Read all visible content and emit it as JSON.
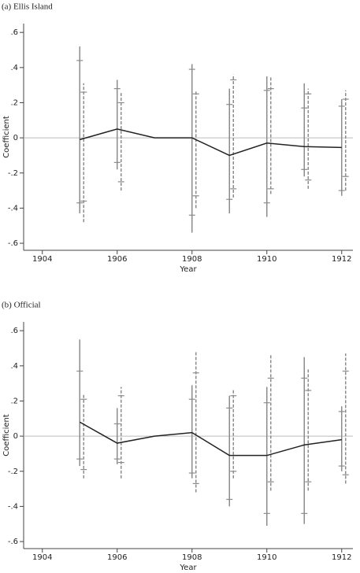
{
  "chart_data": [
    {
      "type": "line",
      "title": "(a) Ellis Island",
      "x_label": "Year",
      "y_label": "Coefficient",
      "x": [
        1905,
        1906,
        1907,
        1908,
        1909,
        1910,
        1911,
        1912
      ],
      "values": [
        -0.01,
        0.05,
        0,
        0.0,
        -0.1,
        -0.03,
        -0.05,
        -0.055
      ],
      "color": "#222222",
      "xlim": [
        1903.5,
        1912.3
      ],
      "xticks": [
        1904,
        1906,
        1908,
        1910,
        1912
      ],
      "ylim": [
        -0.64,
        0.65
      ],
      "yticks": [
        {
          "value": 0.6,
          "label": ".6"
        },
        {
          "value": 0.4,
          "label": ".4"
        },
        {
          "value": 0.2,
          "label": ".2"
        },
        0,
        {
          "value": -0.2,
          "label": "-.2"
        },
        {
          "value": -0.4,
          "label": "-.4"
        },
        {
          "value": -0.6,
          "label": "-.6"
        }
      ],
      "reference_line": 0,
      "intervals": [
        {
          "dashed": false,
          "color": "#8c8c8c",
          "low": [
            -0.43,
            -0.18,
            null,
            -0.54,
            -0.43,
            -0.45,
            -0.22,
            -0.33
          ],
          "high": [
            0.52,
            0.33,
            null,
            0.42,
            0.28,
            0.35,
            0.31,
            0.22
          ],
          "inner_low": [
            -0.37,
            -0.14,
            null,
            -0.44,
            -0.35,
            -0.37,
            -0.18,
            -0.3
          ],
          "inner_high": [
            0.44,
            0.28,
            null,
            0.39,
            0.19,
            0.27,
            0.17,
            0.18
          ]
        },
        {
          "dashed": true,
          "color": "#8c8c8c",
          "low": [
            -0.48,
            -0.3,
            null,
            -0.4,
            -0.34,
            -0.32,
            -0.29,
            -0.3
          ],
          "high": [
            0.31,
            0.26,
            null,
            0.27,
            0.36,
            0.35,
            0.28,
            0.27
          ],
          "inner_low": [
            -0.36,
            -0.25,
            null,
            -0.33,
            -0.29,
            -0.29,
            -0.24,
            -0.22
          ],
          "inner_high": [
            0.26,
            0.2,
            null,
            0.25,
            0.33,
            0.28,
            0.25,
            0.22
          ]
        }
      ]
    },
    {
      "type": "line",
      "title": "(b) Official",
      "x_label": "Year",
      "y_label": "Coefficient",
      "x": [
        1905,
        1906,
        1907,
        1908,
        1909,
        1910,
        1911,
        1912
      ],
      "values": [
        0.08,
        -0.04,
        0,
        0.02,
        -0.11,
        -0.11,
        -0.05,
        -0.02
      ],
      "color": "#222222",
      "xlim": [
        1903.5,
        1912.3
      ],
      "xticks": [
        1904,
        1906,
        1908,
        1910,
        1912
      ],
      "ylim": [
        -0.64,
        0.65
      ],
      "yticks": [
        {
          "value": 0.6,
          "label": ".6"
        },
        {
          "value": 0.4,
          "label": ".4"
        },
        {
          "value": 0.2,
          "label": ".2"
        },
        0,
        {
          "value": -0.2,
          "label": "-.2"
        },
        {
          "value": -0.4,
          "label": "-.4"
        },
        {
          "value": -0.6,
          "label": "-.6"
        }
      ],
      "reference_line": 0,
      "intervals": [
        {
          "dashed": false,
          "color": "#8c8c8c",
          "low": [
            -0.17,
            -0.16,
            null,
            -0.24,
            -0.4,
            -0.51,
            -0.5,
            -0.2
          ],
          "high": [
            0.55,
            0.16,
            null,
            0.29,
            0.23,
            0.28,
            0.45,
            0.17
          ],
          "inner_low": [
            -0.13,
            -0.13,
            null,
            -0.21,
            -0.36,
            -0.44,
            -0.44,
            -0.17
          ],
          "inner_high": [
            0.37,
            0.07,
            null,
            0.21,
            0.16,
            0.19,
            0.33,
            0.14
          ]
        },
        {
          "dashed": true,
          "color": "#8c8c8c",
          "low": [
            -0.24,
            -0.24,
            null,
            -0.32,
            -0.24,
            -0.31,
            -0.31,
            -0.27
          ],
          "high": [
            0.24,
            0.28,
            null,
            0.48,
            0.27,
            0.46,
            0.38,
            0.47
          ],
          "inner_low": [
            -0.19,
            -0.15,
            null,
            -0.27,
            -0.2,
            -0.26,
            -0.26,
            -0.22
          ],
          "inner_high": [
            0.21,
            0.23,
            null,
            0.36,
            0.23,
            0.33,
            0.26,
            0.37
          ]
        }
      ]
    }
  ]
}
